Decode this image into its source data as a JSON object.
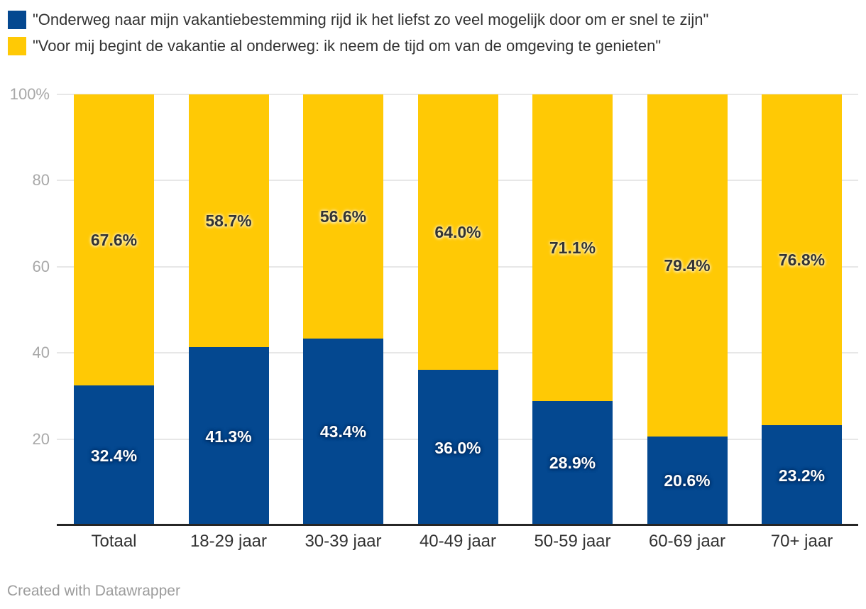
{
  "legend": {
    "items": [
      {
        "label": "\"Onderweg naar mijn vakantiebestemming rijd ik het liefst zo veel mogelijk door om er snel te zijn\"",
        "color": "#044890"
      },
      {
        "label": "\"Voor mij begint de vakantie al onderweg: ik neem de tijd om van de omgeving te genieten\"",
        "color": "#FFC905"
      }
    ]
  },
  "chart_data": {
    "type": "bar",
    "variant": "stacked-100",
    "categories": [
      "Totaal",
      "18-29 jaar",
      "30-39 jaar",
      "40-49 jaar",
      "50-59 jaar",
      "60-69 jaar",
      "70+ jaar"
    ],
    "series": [
      {
        "name": "\"Onderweg naar mijn vakantiebestemming rijd ik het liefst zo veel mogelijk door om er snel te zijn\"",
        "color": "#044890",
        "values": [
          32.4,
          41.3,
          43.4,
          36.0,
          28.9,
          20.6,
          23.2
        ],
        "labels": [
          "32.4%",
          "41.3%",
          "43.4%",
          "36.0%",
          "28.9%",
          "20.6%",
          "23.2%"
        ]
      },
      {
        "name": "\"Voor mij begint de vakantie al onderweg: ik neem de tijd om van de omgeving te genieten\"",
        "color": "#FFC905",
        "values": [
          67.6,
          58.7,
          56.6,
          64.0,
          71.1,
          79.4,
          76.8
        ],
        "labels": [
          "67.6%",
          "58.7%",
          "56.6%",
          "64.0%",
          "71.1%",
          "79.4%",
          "76.8%"
        ]
      }
    ],
    "y_axis": {
      "min": 0,
      "max": 100,
      "tick_values": [
        100,
        80,
        60,
        40,
        20
      ],
      "tick_labels": [
        "100%",
        "80",
        "60",
        "40",
        "20"
      ],
      "grid": true
    },
    "legend_position": "top",
    "title": "",
    "xlabel": "",
    "ylabel": ""
  },
  "colors": {
    "series_blue": "#044890",
    "series_yellow": "#FFC905",
    "gridline": "#e7e7e7",
    "axis_line": "#262626",
    "tick_text": "#a8a8a8",
    "category_text": "#333333",
    "legend_text": "#333333",
    "footer_text": "#9c9c9c",
    "background": "#ffffff"
  },
  "footer": {
    "credit": "Created with Datawrapper"
  }
}
